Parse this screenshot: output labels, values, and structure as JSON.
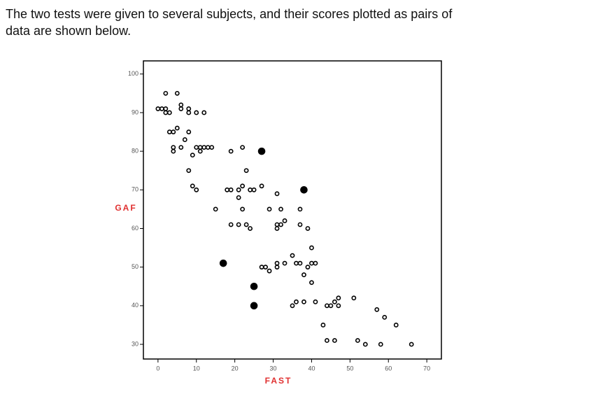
{
  "intro": [
    "The two tests were given to several subjects, and their scores plotted as pairs of",
    "data are shown below."
  ],
  "chart_data": {
    "type": "scatter",
    "x_label": "FAST",
    "y_label": "GAF",
    "xlim": [
      -3.8,
      73.8
    ],
    "ylim": [
      26.2,
      103.4
    ],
    "xticks": [
      0,
      10,
      20,
      30,
      40,
      50,
      60,
      70
    ],
    "yticks": [
      30,
      40,
      50,
      60,
      70,
      80,
      90,
      100
    ],
    "series": [
      {
        "color": "#000000",
        "filled": false,
        "x": [
          2,
          5,
          0,
          1,
          2,
          2,
          3,
          6,
          6,
          8,
          8,
          10,
          12,
          3,
          4,
          5,
          8,
          7,
          4,
          4,
          6,
          10,
          11,
          12,
          13,
          14,
          11,
          9,
          8,
          9,
          10,
          15,
          19,
          22,
          23,
          18,
          19,
          21,
          22,
          21,
          24,
          25,
          27,
          22,
          29,
          31,
          32,
          37,
          19,
          21,
          23,
          24,
          31,
          31,
          32,
          33,
          37,
          39,
          40,
          35,
          27,
          28,
          29,
          31,
          31,
          33,
          36,
          37,
          38,
          39,
          40,
          41,
          40,
          35,
          36,
          38,
          41,
          44,
          45,
          46,
          47,
          47,
          51,
          43,
          57,
          59,
          62,
          44,
          46,
          52,
          54,
          58,
          66
        ],
        "values": [
          95,
          95,
          91,
          91,
          91,
          90,
          90,
          92,
          91,
          91,
          90,
          90,
          90,
          85,
          85,
          86,
          85,
          83,
          81,
          80,
          81,
          81,
          81,
          81,
          81,
          81,
          80,
          79,
          75,
          71,
          70,
          65,
          80,
          81,
          75,
          70,
          70,
          70,
          71,
          68,
          70,
          70,
          71,
          65,
          65,
          69,
          65,
          65,
          61,
          61,
          61,
          60,
          61,
          60,
          61,
          62,
          61,
          60,
          55,
          53,
          50,
          50,
          49,
          51,
          50,
          51,
          51,
          51,
          48,
          50,
          51,
          51,
          46,
          40,
          41,
          41,
          41,
          40,
          40,
          41,
          42,
          40,
          42,
          35,
          39,
          37,
          35,
          31,
          31,
          31,
          30,
          30,
          30
        ]
      },
      {
        "color": "#000000",
        "filled": true,
        "x": [
          27,
          38,
          17,
          25,
          25
        ],
        "values": [
          80,
          70,
          51,
          45,
          40
        ]
      }
    ]
  }
}
